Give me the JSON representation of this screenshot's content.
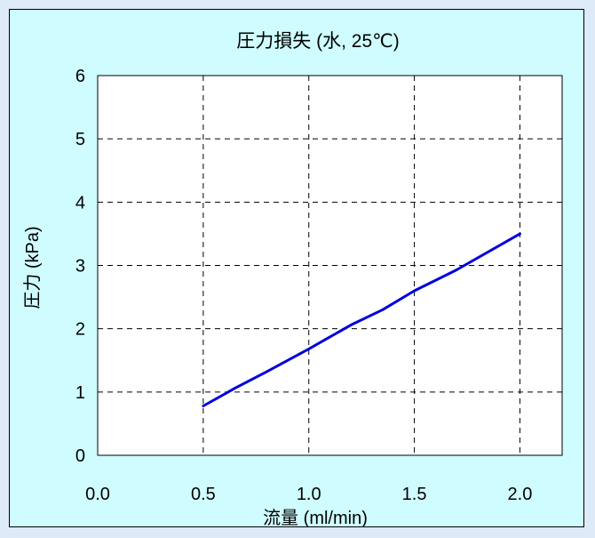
{
  "chart_data": {
    "type": "line",
    "title": "圧力損失 (水, 25℃)",
    "xlabel": "流量 (ml/min)",
    "ylabel": "圧力 (kPa)",
    "xlim": [
      0.0,
      2.2
    ],
    "ylim": [
      0,
      6
    ],
    "xticks": [
      "0.0",
      "0.5",
      "1.0",
      "1.5",
      "2.0"
    ],
    "xtick_values": [
      0.0,
      0.5,
      1.0,
      1.5,
      2.0
    ],
    "yticks": [
      "0",
      "1",
      "2",
      "3",
      "4",
      "5",
      "6"
    ],
    "ytick_values": [
      0,
      1,
      2,
      3,
      4,
      5,
      6
    ],
    "grid": true,
    "series": [
      {
        "color": "#0000dd",
        "x": [
          0.5,
          0.65,
          0.8,
          1.0,
          1.2,
          1.35,
          1.5,
          1.7,
          2.0
        ],
        "y": [
          0.78,
          1.06,
          1.32,
          1.68,
          2.06,
          2.3,
          2.6,
          2.93,
          3.5
        ]
      }
    ]
  },
  "colors": {
    "page_background": "#dcebf7",
    "panel_background": "#cffcff",
    "plot_background": "#ffffff",
    "line": "#0000dd"
  }
}
